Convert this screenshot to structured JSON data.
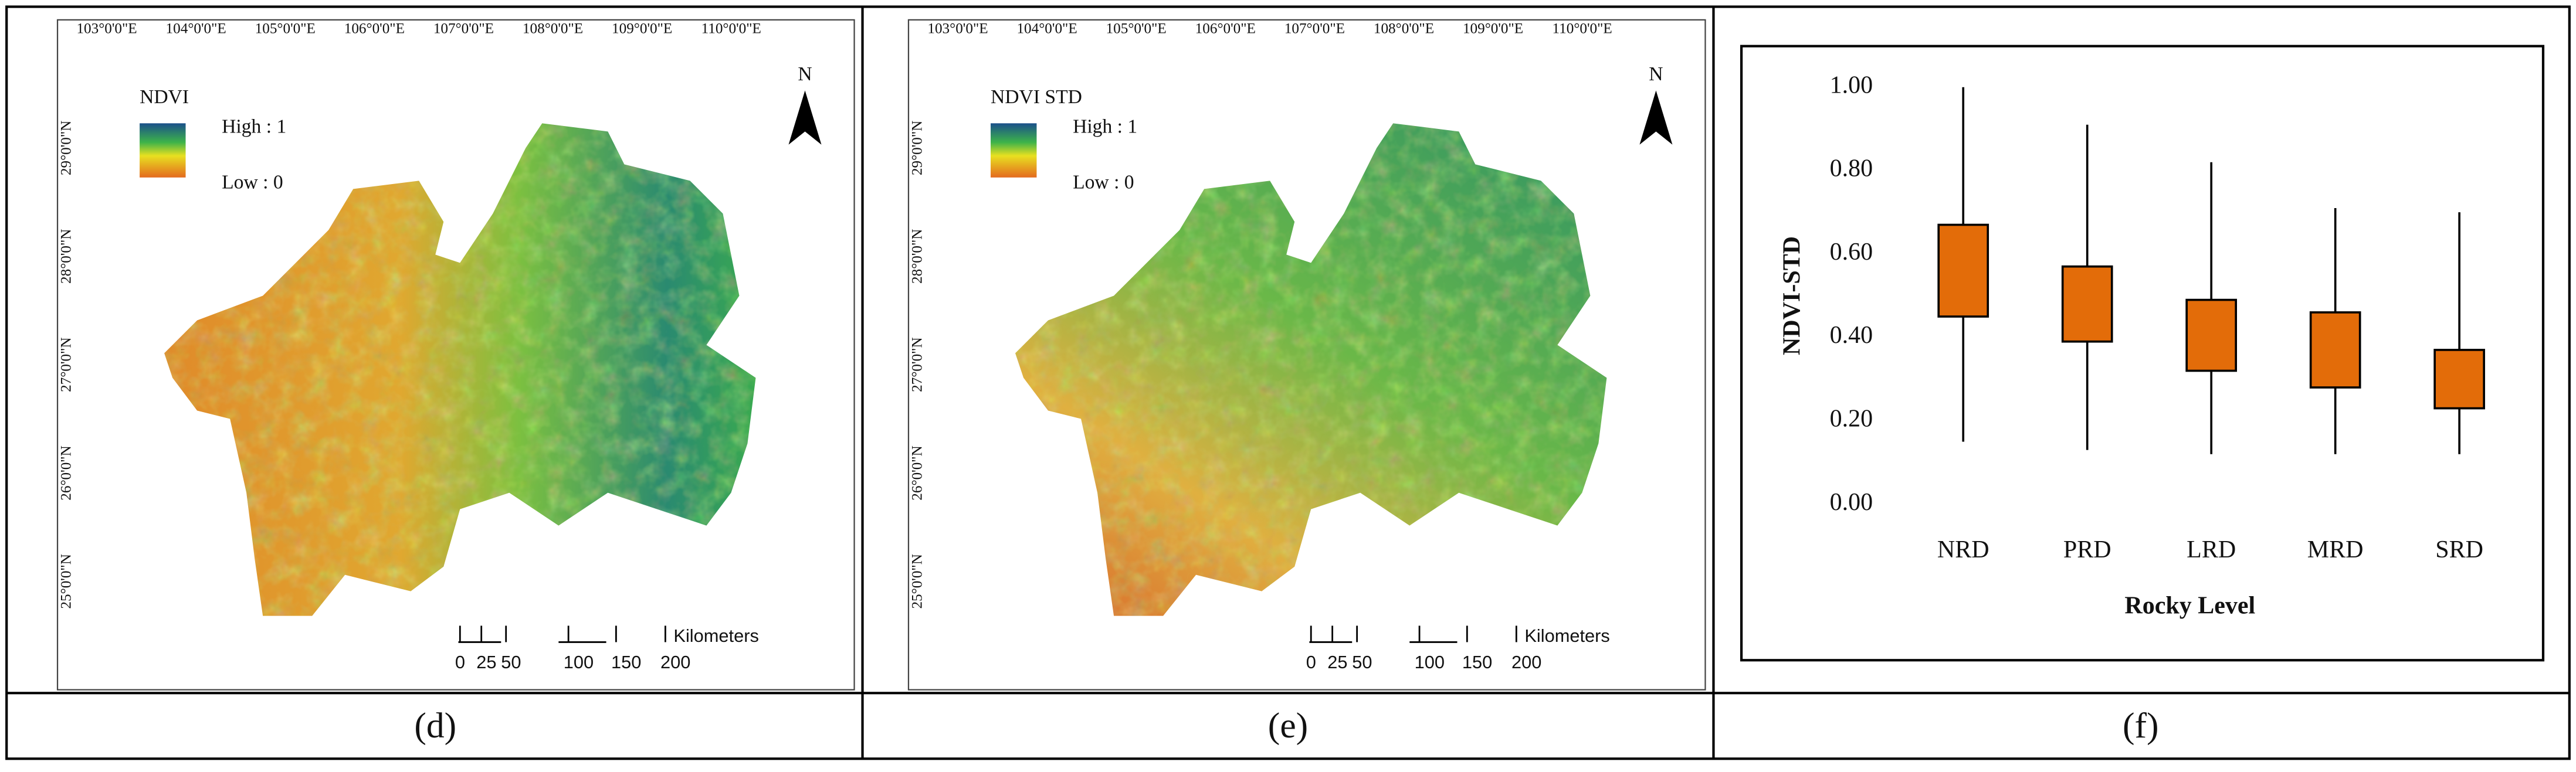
{
  "panels": [
    {
      "label": "(d)",
      "map": {
        "legend_title": "NDVI",
        "high": "High : 1",
        "low": "Low : 0",
        "north": "N",
        "lon_labels": [
          "103°0'0\"E",
          "104°0'0\"E",
          "105°0'0\"E",
          "106°0'0\"E",
          "107°0'0\"E",
          "108°0'0\"E",
          "109°0'0\"E",
          "110°0'0\"E"
        ],
        "lat_labels": [
          "29°0'0\"N",
          "28°0'0\"N",
          "27°0'0\"N",
          "26°0'0\"N",
          "25°0'0\"N"
        ],
        "scale_labels": [
          0,
          25,
          50,
          100,
          150,
          200
        ],
        "scale_unit": "Kilometers"
      }
    },
    {
      "label": "(e)",
      "map": {
        "legend_title": "NDVI STD",
        "high": "High : 1",
        "low": "Low : 0",
        "north": "N",
        "lon_labels": [
          "103°0'0\"E",
          "104°0'0\"E",
          "105°0'0\"E",
          "106°0'0\"E",
          "107°0'0\"E",
          "108°0'0\"E",
          "109°0'0\"E",
          "110°0'0\"E"
        ],
        "lat_labels": [
          "29°0'0\"N",
          "28°0'0\"N",
          "27°0'0\"N",
          "26°0'0\"N",
          "25°0'0\"N"
        ],
        "scale_labels": [
          0,
          25,
          50,
          100,
          150,
          200
        ],
        "scale_unit": "Kilometers"
      }
    },
    {
      "label": "(f)"
    }
  ],
  "chart_data": {
    "type": "box",
    "y_label": "NDVI-STD",
    "x_label": "Rocky Level",
    "categories": [
      "NRD",
      "PRD",
      "LRD",
      "MRD",
      "SRD"
    ],
    "color": "#e36c09",
    "boxes": [
      {
        "min": 0.15,
        "q1": 0.45,
        "q3": 0.67,
        "max": 1.0
      },
      {
        "min": 0.13,
        "q1": 0.39,
        "q3": 0.57,
        "max": 0.91
      },
      {
        "min": 0.12,
        "q1": 0.32,
        "q3": 0.49,
        "max": 0.82
      },
      {
        "min": 0.12,
        "q1": 0.28,
        "q3": 0.46,
        "max": 0.71
      },
      {
        "min": 0.12,
        "q1": 0.23,
        "q3": 0.37,
        "max": 0.7
      }
    ],
    "ylim": [
      0,
      1.1
    ],
    "yticks": [
      {
        "value": 0,
        "label": "0.00"
      },
      {
        "value": 0.2,
        "label": "0.20"
      },
      {
        "value": 0.4,
        "label": "0.40"
      },
      {
        "value": 0.6,
        "label": "0.60"
      },
      {
        "value": 0.8,
        "label": "0.80"
      },
      {
        "value": 1.0,
        "label": "1.00"
      }
    ]
  }
}
